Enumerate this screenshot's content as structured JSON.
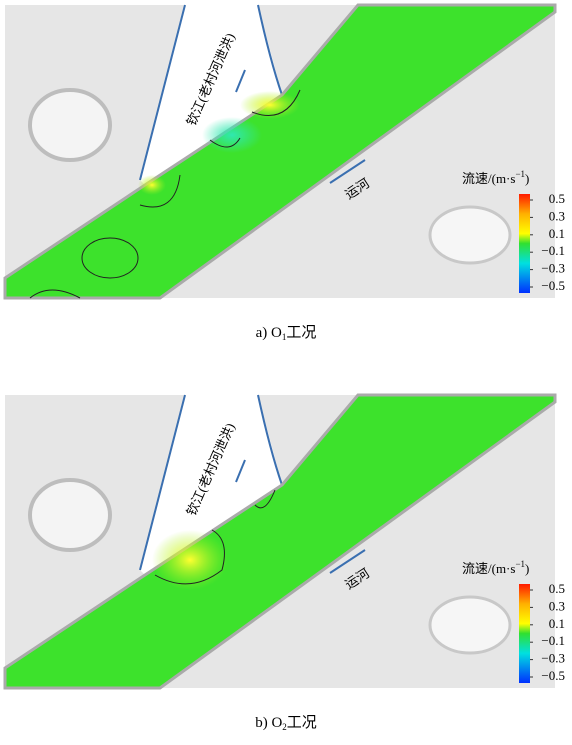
{
  "panels": [
    {
      "caption": {
        "prefix": "a) O",
        "sub": "1",
        "suffix": "工况"
      },
      "river_label": "钦江(老村河泄洪)",
      "canal_label": "运河",
      "legend": {
        "title": "流速/(m·s",
        "title_sup": "−1",
        "title_end": ")",
        "ticks": [
          0.5,
          0.3,
          0.1,
          {
            "value": -0.1,
            "label": "−0.1"
          },
          {
            "value": -0.3,
            "label": "−0.3"
          },
          {
            "value": -0.5,
            "label": "−0.5"
          }
        ]
      }
    },
    {
      "caption": {
        "prefix": "b) O",
        "sub": "2",
        "suffix": "工况"
      },
      "river_label": "钦江(老村河泄洪)",
      "canal_label": "运河",
      "legend": {
        "title": "流速/(m·s",
        "title_sup": "−1",
        "title_end": ")",
        "ticks": [
          0.5,
          0.3,
          0.1,
          {
            "value": -0.1,
            "label": "−0.1"
          },
          {
            "value": -0.3,
            "label": "−0.3"
          },
          {
            "value": -0.5,
            "label": "−0.5"
          }
        ]
      }
    }
  ]
}
